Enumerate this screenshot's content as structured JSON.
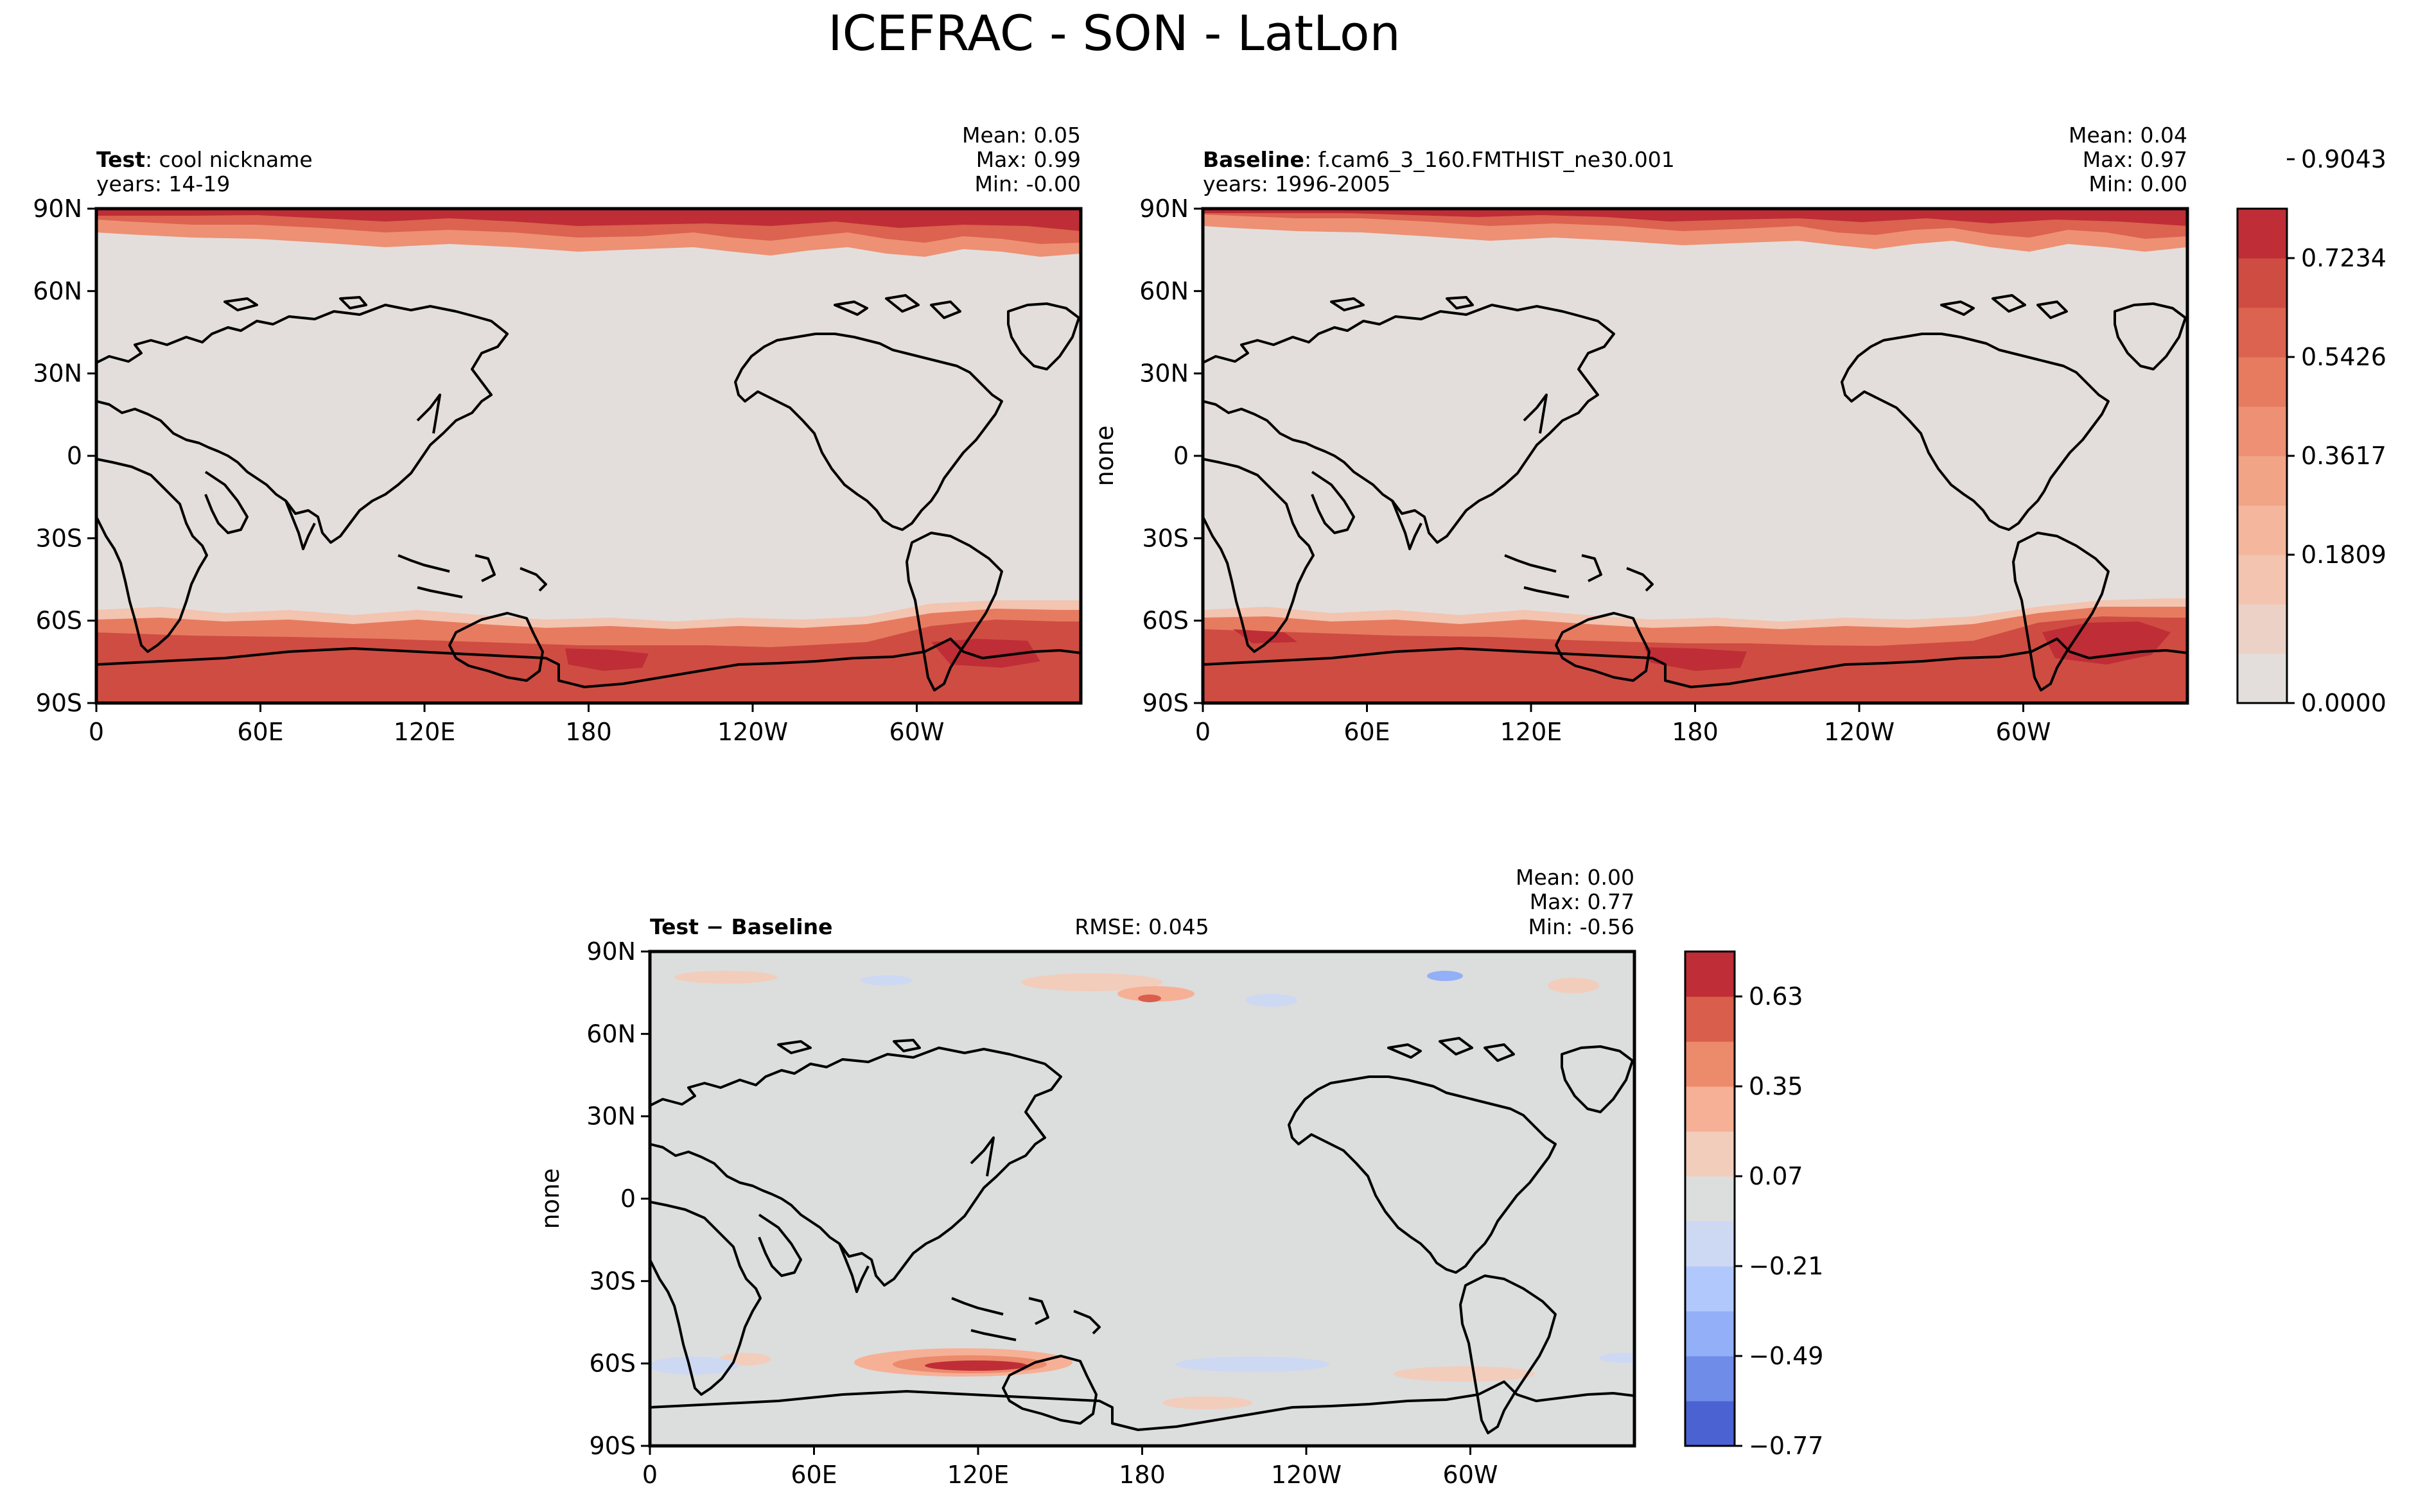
{
  "title": "ICEFRAC - SON - LatLon",
  "x_ticks": [
    "0",
    "60E",
    "120E",
    "180",
    "120W",
    "60W"
  ],
  "y_ticks": [
    "90N",
    "60N",
    "30N",
    "0",
    "30S",
    "60S",
    "90S"
  ],
  "colors": {
    "land_fill": "#e3dedb",
    "diff_fill": "#dcdddd",
    "coast": "#000000"
  },
  "chart_data": [
    {
      "type": "heatmap",
      "panel": "test",
      "name_bold": "Test",
      "name_rest": ": cool nickname",
      "years": "years: 14-19",
      "stats": {
        "mean": "Mean:  0.05",
        "max": "Max:  0.99",
        "min": "Min: -0.00"
      },
      "ylabel": "",
      "xlim": [
        0,
        360
      ],
      "ylim": [
        -90,
        90
      ],
      "summary": {
        "mean": 0.05,
        "max": 0.99,
        "min": -0.0
      }
    },
    {
      "type": "heatmap",
      "panel": "baseline",
      "name_bold": "Baseline",
      "name_rest": ": f.cam6_3_160.FMTHIST_ne30.001",
      "years": "years: 1996-2005",
      "stats": {
        "mean": "Mean:  0.04",
        "max": "Max:  0.97",
        "min": "Min:  0.00"
      },
      "ylabel": "none",
      "xlim": [
        0,
        360
      ],
      "ylim": [
        -90,
        90
      ],
      "summary": {
        "mean": 0.04,
        "max": 0.97,
        "min": 0.0
      },
      "colorbar": {
        "ticks": [
          "0.9043",
          "0.7234",
          "0.5426",
          "0.3617",
          "0.1809",
          "0.0000"
        ],
        "levels_colors": [
          "#e3dedb",
          "#ecd2c6",
          "#f3c4b0",
          "#f4b79d",
          "#f2a487",
          "#ee9073",
          "#e67b60",
          "#db634f",
          "#cf4c42",
          "#bf2d36"
        ]
      }
    },
    {
      "type": "heatmap",
      "panel": "difference",
      "name_bold": "Test − Baseline",
      "rmse": "RMSE: 0.045",
      "stats": {
        "mean": "Mean:  0.00",
        "max": "Max:  0.77",
        "min": "Min: -0.56"
      },
      "ylabel": "none",
      "xlim": [
        0,
        360
      ],
      "ylim": [
        -90,
        90
      ],
      "summary": {
        "mean": 0.0,
        "max": 0.77,
        "min": -0.56,
        "rmse": 0.045
      },
      "colorbar": {
        "ticks": [
          "0.63",
          "0.35",
          "0.07",
          "−0.21",
          "−0.49",
          "−0.77"
        ],
        "levels_colors": [
          "#4b62d2",
          "#6f8ce8",
          "#92aff7",
          "#b1c8fc",
          "#cdd9f3",
          "#dcdddd",
          "#f2cdbb",
          "#f6b096",
          "#ec8a6c",
          "#d95e4c",
          "#bf2d36"
        ]
      }
    }
  ]
}
